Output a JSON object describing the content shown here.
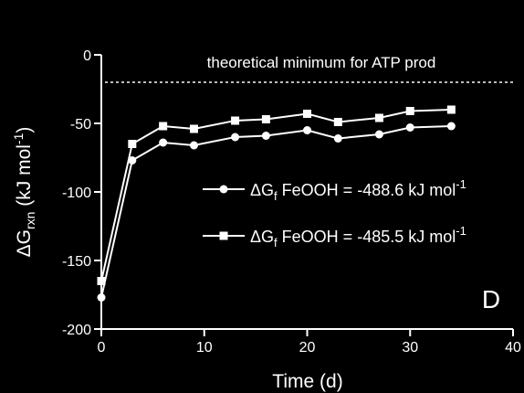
{
  "chart_data": {
    "type": "line",
    "panel_label": "D",
    "xlabel": "Time (d)",
    "ylabel": {
      "base": "ΔG",
      "sub": "rxn",
      "tail": " (kJ mol",
      "sup": "-1",
      "end": ")"
    },
    "xlim": [
      0,
      40
    ],
    "ylim": [
      -200,
      0
    ],
    "x_ticks": [
      0,
      10,
      20,
      30,
      40
    ],
    "y_ticks": [
      0,
      -50,
      -100,
      -150,
      -200
    ],
    "grid": false,
    "legend_placement": "center-right",
    "reference_line": {
      "y": -20,
      "label": "theoretical minimum for ATP prod",
      "style": "dashed"
    },
    "series": [
      {
        "name": "ΔGf FeOOH = -488.6 kJ mol-1",
        "label_parts": {
          "pre": "Δ",
          "g": "G",
          "sub": "f",
          "mid": " FeOOH = -488.6 kJ mol",
          "sup": "-1"
        },
        "marker": "circle",
        "x": [
          0,
          3,
          6,
          9,
          13,
          16,
          20,
          23,
          27,
          30,
          34
        ],
        "y": [
          -177,
          -77,
          -64,
          -66,
          -60,
          -59,
          -55,
          -61,
          -58,
          -53,
          -52
        ]
      },
      {
        "name": "ΔGf FeOOH = -485.5 kJ mol-1",
        "label_parts": {
          "pre": "Δ",
          "g": "G",
          "sub": "f",
          "mid": " FeOOH = -485.5 kJ mol",
          "sup": "-1"
        },
        "marker": "square",
        "x": [
          0,
          3,
          6,
          9,
          13,
          16,
          20,
          23,
          27,
          30,
          34
        ],
        "y": [
          -165,
          -65,
          -52,
          -54,
          -48,
          -47,
          -43,
          -49,
          -46,
          -41,
          -40
        ]
      }
    ]
  },
  "colors": {
    "background": "#000000",
    "foreground": "#ffffff"
  }
}
